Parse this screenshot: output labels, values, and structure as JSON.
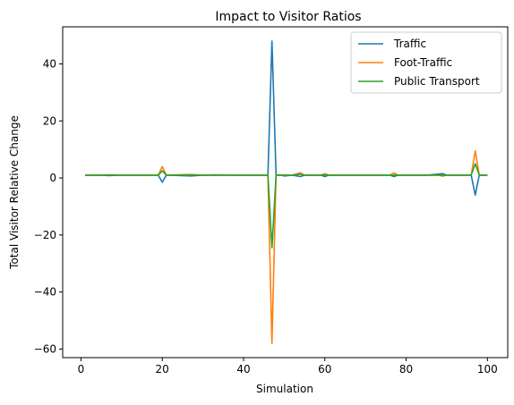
{
  "chart_data": {
    "type": "line",
    "title": "Impact to Visitor Ratios",
    "xlabel": "Simulation",
    "ylabel": "Total Visitor Relative Change",
    "xlim": [
      -4.5,
      105
    ],
    "ylim": [
      -63,
      53
    ],
    "xticks": [
      0,
      20,
      40,
      60,
      80,
      100
    ],
    "yticks": [
      -60,
      -40,
      -20,
      0,
      20,
      40
    ],
    "grid": false,
    "legend_position": "top-right",
    "series": [
      {
        "name": "Traffic",
        "color": "#1f77b4",
        "points": [
          [
            1,
            1
          ],
          [
            5,
            1
          ],
          [
            7,
            0.8
          ],
          [
            9,
            1
          ],
          [
            15,
            1
          ],
          [
            18,
            1
          ],
          [
            19,
            1
          ],
          [
            20,
            -1.5
          ],
          [
            21,
            1
          ],
          [
            22,
            1
          ],
          [
            27,
            0.7
          ],
          [
            30,
            1
          ],
          [
            33,
            1
          ],
          [
            40,
            1
          ],
          [
            45,
            1
          ],
          [
            46,
            1
          ],
          [
            47,
            48
          ],
          [
            48,
            1
          ],
          [
            49,
            1.1
          ],
          [
            50,
            0.7
          ],
          [
            52,
            1
          ],
          [
            54,
            0.5
          ],
          [
            55,
            1
          ],
          [
            59,
            1
          ],
          [
            60,
            0.5
          ],
          [
            61,
            1
          ],
          [
            70,
            1
          ],
          [
            76,
            1
          ],
          [
            77,
            0.5
          ],
          [
            78,
            1
          ],
          [
            85,
            1
          ],
          [
            89,
            1.5
          ],
          [
            90,
            1
          ],
          [
            96,
            1
          ],
          [
            97,
            -6
          ],
          [
            98,
            1
          ],
          [
            100,
            1
          ]
        ]
      },
      {
        "name": "Foot-Traffic",
        "color": "#ff7f0e",
        "points": [
          [
            1,
            1
          ],
          [
            5,
            1
          ],
          [
            7,
            1.1
          ],
          [
            9,
            1
          ],
          [
            15,
            1
          ],
          [
            19,
            1
          ],
          [
            20,
            4
          ],
          [
            21,
            1
          ],
          [
            27,
            1.2
          ],
          [
            30,
            1
          ],
          [
            33,
            1.1
          ],
          [
            40,
            1
          ],
          [
            45,
            1
          ],
          [
            46,
            1
          ],
          [
            47,
            -58
          ],
          [
            48,
            1
          ],
          [
            49,
            1
          ],
          [
            50,
            1
          ],
          [
            52,
            1
          ],
          [
            54,
            1.8
          ],
          [
            55,
            1
          ],
          [
            59,
            1
          ],
          [
            60,
            1.5
          ],
          [
            61,
            1
          ],
          [
            70,
            1
          ],
          [
            76,
            1
          ],
          [
            77,
            1.8
          ],
          [
            78,
            1
          ],
          [
            85,
            1
          ],
          [
            88,
            1
          ],
          [
            89,
            0.6
          ],
          [
            90,
            1
          ],
          [
            96,
            1
          ],
          [
            97,
            9.5
          ],
          [
            98,
            1
          ],
          [
            100,
            1
          ]
        ]
      },
      {
        "name": "Public Transport",
        "color": "#2ca02c",
        "points": [
          [
            1,
            1
          ],
          [
            5,
            1
          ],
          [
            7,
            1
          ],
          [
            9,
            1
          ],
          [
            15,
            1
          ],
          [
            19,
            1
          ],
          [
            20,
            2.5
          ],
          [
            21,
            1
          ],
          [
            27,
            1
          ],
          [
            30,
            1
          ],
          [
            33,
            1
          ],
          [
            40,
            1
          ],
          [
            45,
            1
          ],
          [
            46,
            1
          ],
          [
            47,
            -24.5
          ],
          [
            48,
            1
          ],
          [
            49,
            1
          ],
          [
            50,
            1
          ],
          [
            52,
            1
          ],
          [
            54,
            1.3
          ],
          [
            55,
            1
          ],
          [
            59,
            1
          ],
          [
            60,
            1.1
          ],
          [
            61,
            1
          ],
          [
            70,
            1
          ],
          [
            76,
            1
          ],
          [
            77,
            1
          ],
          [
            78,
            1
          ],
          [
            85,
            1
          ],
          [
            89,
            1
          ],
          [
            90,
            1
          ],
          [
            96,
            1
          ],
          [
            97,
            5
          ],
          [
            98,
            1
          ],
          [
            100,
            1
          ]
        ]
      }
    ]
  }
}
